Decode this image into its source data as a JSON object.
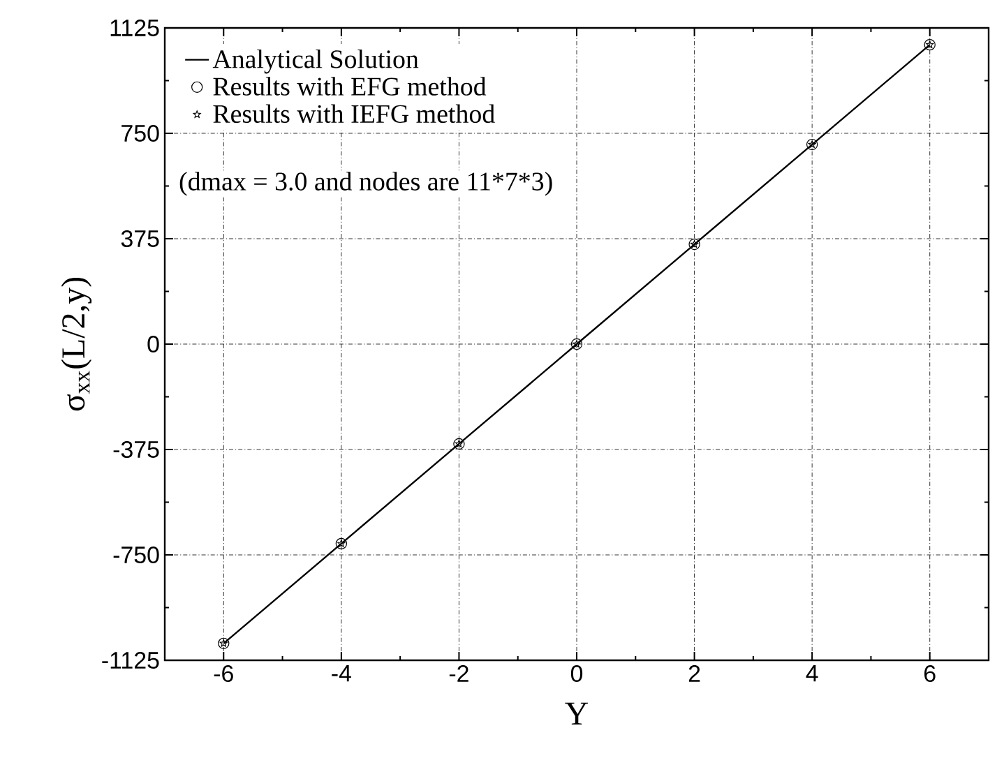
{
  "chart_data": {
    "type": "line",
    "xlabel": "Y",
    "ylabel": "σ$_{xx}$(L/2,y)",
    "x": [
      -6,
      -4,
      -2,
      0,
      2,
      4,
      6
    ],
    "series": [
      {
        "name": "Analytical Solution",
        "marker": "none",
        "color": "#000000",
        "values": [
          -1065,
          -710,
          -355,
          0,
          355,
          710,
          1065
        ]
      },
      {
        "name": "Results with EFG method",
        "type": "scatter",
        "marker": "circle",
        "color": "#000000",
        "values": [
          -1065,
          -710,
          -355,
          0,
          355,
          710,
          1065
        ]
      },
      {
        "name": "Results with IEFG method",
        "type": "scatter",
        "marker": "star",
        "color": "#000000",
        "values": [
          -1065,
          -710,
          -355,
          0,
          355,
          710,
          1065
        ]
      }
    ],
    "annotations": [
      "(dmax = 3.0 and nodes are 11*7*3)"
    ],
    "xlim": [
      -7,
      7
    ],
    "xticks": [
      -6,
      -4,
      -2,
      0,
      2,
      4,
      6
    ],
    "ylim": [
      -1125,
      1125
    ],
    "yticks": [
      -1125,
      -750,
      -375,
      0,
      375,
      750,
      1125
    ],
    "grid": true,
    "legend": "top left"
  }
}
